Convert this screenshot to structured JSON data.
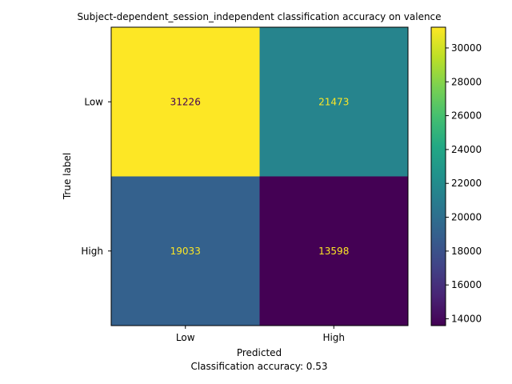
{
  "chart_data": {
    "type": "heatmap",
    "title": "Subject-dependent_session_independent classification accuracy on valence",
    "xlabel": "Predicted",
    "ylabel": "True label",
    "footer": "Classification accuracy: 0.53",
    "x_categories": [
      "Low",
      "High"
    ],
    "y_categories": [
      "Low",
      "High"
    ],
    "matrix": [
      [
        31226,
        21473
      ],
      [
        19033,
        13598
      ]
    ],
    "colorbar": {
      "colormap": "viridis",
      "min": 13598,
      "max": 31226,
      "ticks": [
        14000,
        16000,
        18000,
        20000,
        22000,
        24000,
        26000,
        28000,
        30000
      ]
    },
    "cell_text_colors": {
      "dark_background": "#fde725",
      "light_background": "#440154"
    }
  }
}
